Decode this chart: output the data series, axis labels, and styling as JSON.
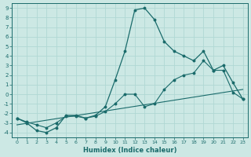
{
  "xlabel": "Humidex (Indice chaleur)",
  "bg_color": "#cce8e4",
  "grid_color": "#b0d8d4",
  "line_color": "#1a6b6b",
  "xlim": [
    -0.5,
    23.5
  ],
  "ylim": [
    -4.5,
    9.5
  ],
  "xticks": [
    0,
    1,
    2,
    3,
    4,
    5,
    6,
    7,
    8,
    9,
    10,
    11,
    12,
    13,
    14,
    15,
    16,
    17,
    18,
    19,
    20,
    21,
    22,
    23
  ],
  "yticks": [
    -4,
    -3,
    -2,
    -1,
    0,
    1,
    2,
    3,
    4,
    5,
    6,
    7,
    8,
    9
  ],
  "series1_x": [
    0,
    1,
    2,
    3,
    4,
    5,
    6,
    7,
    8,
    9,
    10,
    11,
    12,
    13,
    14,
    15,
    16,
    17,
    18,
    19,
    20,
    21,
    22,
    23
  ],
  "series1_y": [
    -2.5,
    -3.0,
    -3.8,
    -4.0,
    -3.5,
    -2.2,
    -2.2,
    -2.5,
    -2.2,
    -1.3,
    1.5,
    4.5,
    8.8,
    9.0,
    7.8,
    5.5,
    4.5,
    4.0,
    3.5,
    4.5,
    2.5,
    3.0,
    1.2,
    -0.5
  ],
  "series2_x": [
    0,
    23
  ],
  "series2_y": [
    -3.2,
    0.5
  ],
  "series3_x": [
    0,
    1,
    2,
    3,
    4,
    5,
    6,
    7,
    8,
    9,
    10,
    11,
    12,
    13,
    14,
    15,
    16,
    17,
    18,
    19,
    20,
    21,
    22,
    23
  ],
  "series3_y": [
    -2.5,
    -2.9,
    -3.2,
    -3.5,
    -3.0,
    -2.3,
    -2.3,
    -2.5,
    -2.3,
    -1.8,
    -1.0,
    0.0,
    0.0,
    -1.3,
    -1.0,
    0.5,
    1.5,
    2.0,
    2.2,
    3.5,
    2.5,
    2.5,
    0.2,
    -0.5
  ]
}
